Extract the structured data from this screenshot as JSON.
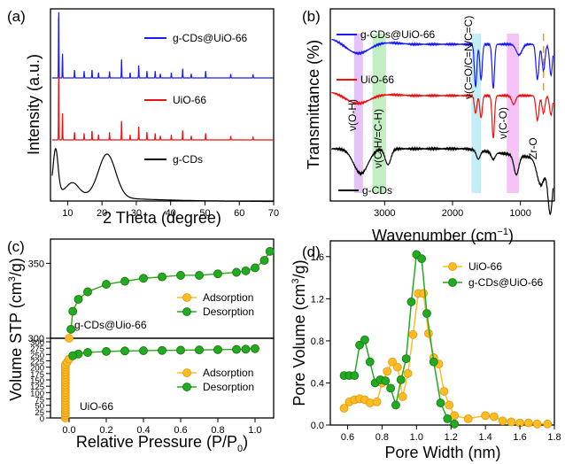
{
  "chart_data": [
    {
      "panel": "(a)",
      "type": "line",
      "xlabel": "2 Theta (degree)",
      "ylabel": "Intensity (a.u.)",
      "xlim": [
        5,
        70
      ],
      "xticks": [
        "10",
        "20",
        "30",
        "40",
        "50",
        "60",
        "70"
      ],
      "series": [
        {
          "name": "g-CDs@UiO-66",
          "color": "#1a1aff",
          "peaks": [
            [
              7.4,
              1.0
            ],
            [
              8.5,
              0.35
            ],
            [
              12.0,
              0.12
            ],
            [
              14.8,
              0.1
            ],
            [
              17.1,
              0.12
            ],
            [
              19.0,
              0.08
            ],
            [
              22.2,
              0.1
            ],
            [
              25.7,
              0.28
            ],
            [
              28.2,
              0.08
            ],
            [
              30.7,
              0.18
            ],
            [
              33.1,
              0.1
            ],
            [
              35.5,
              0.1
            ],
            [
              37.0,
              0.06
            ],
            [
              40.2,
              0.08
            ],
            [
              43.5,
              0.14
            ],
            [
              46.0,
              0.06
            ],
            [
              50.2,
              0.1
            ],
            [
              57.5,
              0.06
            ],
            [
              64.0,
              0.05
            ]
          ]
        },
        {
          "name": "UiO-66",
          "color": "#ee1111",
          "peaks": [
            [
              7.4,
              1.0
            ],
            [
              8.5,
              0.4
            ],
            [
              12.0,
              0.12
            ],
            [
              14.8,
              0.1
            ],
            [
              17.1,
              0.14
            ],
            [
              19.0,
              0.08
            ],
            [
              22.2,
              0.12
            ],
            [
              25.7,
              0.3
            ],
            [
              28.2,
              0.08
            ],
            [
              30.7,
              0.2
            ],
            [
              33.1,
              0.12
            ],
            [
              35.5,
              0.1
            ],
            [
              37.0,
              0.06
            ],
            [
              40.2,
              0.08
            ],
            [
              43.5,
              0.15
            ],
            [
              46.0,
              0.06
            ],
            [
              50.2,
              0.1
            ],
            [
              57.5,
              0.06
            ],
            [
              64.0,
              0.05
            ]
          ]
        },
        {
          "name": "g-CDs",
          "color": "#000000",
          "humps": [
            [
              6.5,
              0.75,
              1.0
            ],
            [
              11.5,
              0.2,
              2.5
            ],
            [
              21.5,
              0.75,
              3.5
            ]
          ]
        }
      ]
    },
    {
      "panel": "(b)",
      "type": "line",
      "xlabel": "Wavenumber (cm⁻¹)",
      "xlabel_main": "Wavenumber (cm",
      "xlabel_sup": "−1",
      "xlabel_end": ")",
      "ylabel": "Transmittance (%)",
      "xlim": [
        3800,
        500
      ],
      "xticks": [
        "3000",
        "2000",
        "1000"
      ],
      "series": [
        {
          "name": "g-CDs@UiO-66",
          "color": "#1a1aff"
        },
        {
          "name": "UiO-66",
          "color": "#ee1111"
        },
        {
          "name": "g-CDs",
          "color": "#000000"
        }
      ],
      "bands": [
        {
          "label": "ν(O-H)",
          "x": [
            3450,
            3320
          ],
          "color": "#cc88ee"
        },
        {
          "label": "ν(C-H/=C-H)",
          "x": [
            3180,
            2980
          ],
          "color": "#88dd88"
        },
        {
          "label": "ν(C=O/C=N/C=C)",
          "x": [
            1720,
            1580
          ],
          "color": "#88ddee"
        },
        {
          "label": "ν(C-O)",
          "x": [
            1200,
            1020
          ],
          "color": "#ee88ee"
        }
      ],
      "marker": {
        "label": "Zr-O",
        "x": 660,
        "color": "#ff9900"
      }
    },
    {
      "panel": "(c)",
      "type": "scatter",
      "xlabel": "Relative Pressure (P/P₀)",
      "xlabel_main": "Relative Pressure (P/P",
      "xlabel_sub": "0",
      "xlabel_end": ")",
      "ylabel": "Volume STP (cm³/g)",
      "ylabel_main": "Volume STP (cm",
      "ylabel_sup": "3",
      "ylabel_end": "/g)",
      "xlim": [
        -0.1,
        1.1
      ],
      "xticks": [
        "0.0",
        "0.2",
        "0.4",
        "0.6",
        "0.8",
        "1.0"
      ],
      "top": {
        "sample": "g-CDs@Uio-66",
        "ylim": [
          300,
          365
        ],
        "yticks": [
          "300",
          "350"
        ],
        "adsorption": [
          [
            0.0,
            300
          ],
          [
            0.01,
            306
          ],
          [
            0.02,
            318
          ],
          [
            0.05,
            326
          ],
          [
            0.1,
            331
          ],
          [
            0.2,
            336
          ],
          [
            0.3,
            338
          ],
          [
            0.4,
            340
          ],
          [
            0.5,
            341
          ],
          [
            0.6,
            342
          ],
          [
            0.7,
            342
          ],
          [
            0.8,
            343
          ],
          [
            0.9,
            344
          ],
          [
            0.95,
            345
          ],
          [
            1.0,
            347
          ],
          [
            1.05,
            352
          ],
          [
            1.08,
            358
          ]
        ],
        "desorption": [
          [
            1.08,
            358
          ],
          [
            1.05,
            352
          ],
          [
            1.0,
            347
          ],
          [
            0.95,
            345
          ],
          [
            0.9,
            344
          ],
          [
            0.8,
            343
          ],
          [
            0.7,
            342
          ],
          [
            0.6,
            342
          ],
          [
            0.5,
            341
          ],
          [
            0.4,
            340
          ],
          [
            0.3,
            338
          ],
          [
            0.2,
            336
          ],
          [
            0.1,
            331
          ],
          [
            0.05,
            326
          ],
          [
            0.02,
            318
          ],
          [
            0.01,
            306
          ]
        ]
      },
      "bottom": {
        "sample": "UiO-66",
        "ylim": [
          0,
          300
        ],
        "yticks": [
          "0",
          "25",
          "50",
          "75",
          "100",
          "125",
          "150",
          "175",
          "200",
          "225",
          "250",
          "275",
          "300"
        ],
        "adsorption": [
          [
            -0.02,
            0
          ],
          [
            -0.02,
            10
          ],
          [
            -0.02,
            20
          ],
          [
            -0.02,
            30
          ],
          [
            -0.02,
            40
          ],
          [
            -0.02,
            50
          ],
          [
            -0.02,
            60
          ],
          [
            -0.02,
            70
          ],
          [
            -0.02,
            80
          ],
          [
            -0.02,
            90
          ],
          [
            -0.02,
            100
          ],
          [
            -0.02,
            110
          ],
          [
            -0.02,
            120
          ],
          [
            -0.02,
            130
          ],
          [
            -0.02,
            140
          ],
          [
            -0.02,
            150
          ],
          [
            -0.02,
            160
          ],
          [
            -0.02,
            170
          ],
          [
            -0.02,
            180
          ],
          [
            -0.02,
            190
          ],
          [
            -0.02,
            200
          ],
          [
            -0.02,
            210
          ],
          [
            -0.01,
            220
          ],
          [
            0.0,
            232
          ],
          [
            0.02,
            245
          ],
          [
            0.05,
            252
          ],
          [
            0.1,
            258
          ],
          [
            0.2,
            262
          ],
          [
            0.3,
            264
          ],
          [
            0.4,
            265
          ],
          [
            0.5,
            266
          ],
          [
            0.6,
            267
          ],
          [
            0.7,
            268
          ],
          [
            0.8,
            269
          ],
          [
            0.9,
            270
          ],
          [
            0.95,
            271
          ],
          [
            1.0,
            273
          ]
        ],
        "desorption": [
          [
            1.0,
            273
          ],
          [
            0.95,
            271
          ],
          [
            0.9,
            270
          ],
          [
            0.8,
            269
          ],
          [
            0.7,
            268
          ],
          [
            0.6,
            267
          ],
          [
            0.5,
            266
          ],
          [
            0.4,
            265
          ],
          [
            0.3,
            264
          ],
          [
            0.2,
            262
          ],
          [
            0.1,
            258
          ],
          [
            0.05,
            252
          ],
          [
            0.02,
            245
          ]
        ]
      },
      "legend": [
        "Adsorption",
        "Desorption"
      ],
      "colors": {
        "adsorption": "#ffbb22",
        "desorption": "#22aa22"
      }
    },
    {
      "panel": "(d)",
      "type": "line",
      "xlabel": "Pore Width (nm)",
      "ylabel": "Pore Volume (cm³/g)",
      "ylabel_main": "Pore Volume (cm",
      "ylabel_sup": "3",
      "ylabel_end": "/g)",
      "xlim": [
        0.5,
        1.8
      ],
      "ylim": [
        0,
        1.75
      ],
      "xticks": [
        "0.6",
        "0.8",
        "1.0",
        "1.2",
        "1.4",
        "1.6",
        "1.8"
      ],
      "yticks": [
        "0.0",
        "0.4",
        "0.8",
        "1.2",
        "1.6"
      ],
      "series": [
        {
          "name": "UiO-66",
          "color": "#ffbb22",
          "points": [
            [
              0.58,
              0.16
            ],
            [
              0.61,
              0.22
            ],
            [
              0.64,
              0.24
            ],
            [
              0.67,
              0.25
            ],
            [
              0.7,
              0.24
            ],
            [
              0.73,
              0.21
            ],
            [
              0.77,
              0.22
            ],
            [
              0.8,
              0.4
            ],
            [
              0.83,
              0.51
            ],
            [
              0.86,
              0.6
            ],
            [
              0.89,
              0.55
            ],
            [
              0.92,
              0.27
            ],
            [
              0.95,
              0.49
            ],
            [
              0.98,
              0.86
            ],
            [
              1.01,
              1.25
            ],
            [
              1.04,
              1.25
            ],
            [
              1.07,
              0.87
            ],
            [
              1.1,
              0.64
            ],
            [
              1.13,
              0.58
            ],
            [
              1.16,
              0.32
            ],
            [
              1.19,
              0.19
            ],
            [
              1.22,
              0.09
            ],
            [
              1.3,
              0.06
            ],
            [
              1.4,
              0.09
            ],
            [
              1.45,
              0.08
            ],
            [
              1.5,
              0.04
            ],
            [
              1.55,
              0.03
            ],
            [
              1.6,
              0.02
            ],
            [
              1.65,
              0.02
            ],
            [
              1.7,
              0.01
            ],
            [
              1.76,
              0.01
            ]
          ]
        },
        {
          "name": "g-CDs@UiO-66",
          "color": "#22aa22",
          "points": [
            [
              0.58,
              0.47
            ],
            [
              0.61,
              0.47
            ],
            [
              0.64,
              0.47
            ],
            [
              0.67,
              0.76
            ],
            [
              0.7,
              0.81
            ],
            [
              0.73,
              0.6
            ],
            [
              0.76,
              0.4
            ],
            [
              0.79,
              0.43
            ],
            [
              0.82,
              0.42
            ],
            [
              0.85,
              0.35
            ],
            [
              0.88,
              0.19
            ],
            [
              0.91,
              0.43
            ],
            [
              0.94,
              0.63
            ],
            [
              0.97,
              1.17
            ],
            [
              1.0,
              1.62
            ],
            [
              1.03,
              1.58
            ],
            [
              1.06,
              1.06
            ],
            [
              1.1,
              0.6
            ],
            [
              1.14,
              0.21
            ],
            [
              1.18,
              0.06
            ],
            [
              1.22,
              0.01
            ]
          ]
        }
      ]
    }
  ]
}
